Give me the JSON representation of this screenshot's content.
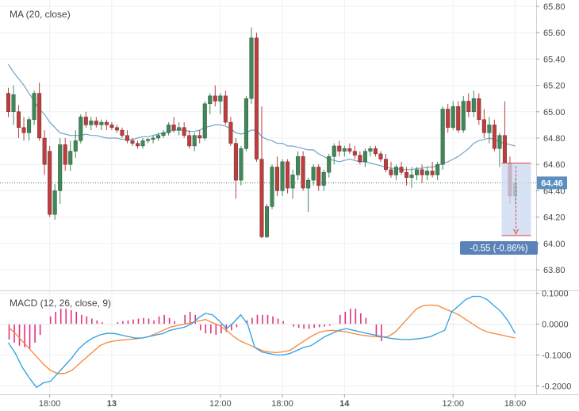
{
  "price_pane": {
    "indicator_label": "MA (20, close)",
    "last_price_label": "64.46",
    "measure_label": "-0.55 (-0.86%)"
  },
  "macd_pane": {
    "indicator_label": "MACD (12, 26, close, 9)"
  },
  "colors": {
    "up": "#3d8a57",
    "down": "#c43b3b",
    "ma": "#6fa5c9",
    "macd_line": "#2d9fe0",
    "signal_line": "#f5883a",
    "histogram": "#e0327e",
    "last_price_bg": "#5b8fbf",
    "measure_bg": "#5b82b8",
    "measure_fill": "#c9daf2",
    "measure_border": "#e04848"
  },
  "chart_data": [
    {
      "type": "candlestick",
      "ylim": [
        63.7,
        65.8
      ],
      "y_ticks": [
        "65.80",
        "65.60",
        "65.40",
        "65.20",
        "65.00",
        "64.80",
        "64.60",
        "64.40",
        "64.20",
        "64.00",
        "63.80"
      ],
      "x_ticks": [
        "18:00",
        "13",
        "12:00",
        "18:00",
        "14",
        "12:00",
        "18:00"
      ],
      "x_tick_bold": [
        false,
        true,
        false,
        false,
        true,
        false,
        false
      ],
      "x_tick_index": [
        8,
        20,
        41,
        53,
        65,
        86,
        98
      ],
      "last_price": 64.46,
      "measure": {
        "start_index": 96,
        "end_index": 98,
        "from": 64.61,
        "to": 64.06,
        "change": -0.55,
        "change_pct": -0.86
      },
      "candles": [
        [
          65.14,
          65.18,
          64.96,
          65.0
        ],
        [
          65.0,
          65.2,
          64.9,
          65.13
        ],
        [
          65.0,
          65.05,
          64.8,
          64.88
        ],
        [
          64.88,
          64.96,
          64.78,
          64.84
        ],
        [
          64.84,
          64.96,
          64.78,
          64.94
        ],
        [
          64.94,
          65.16,
          64.9,
          65.14
        ],
        [
          65.14,
          65.22,
          64.78,
          64.8
        ],
        [
          64.8,
          64.86,
          64.52,
          64.6
        ],
        [
          64.7,
          64.74,
          64.2,
          64.22
        ],
        [
          64.22,
          64.45,
          64.18,
          64.4
        ],
        [
          64.4,
          64.8,
          64.3,
          64.75
        ],
        [
          64.75,
          64.8,
          64.55,
          64.6
        ],
        [
          64.6,
          64.78,
          64.55,
          64.7
        ],
        [
          64.7,
          64.86,
          64.65,
          64.78
        ],
        [
          64.78,
          64.98,
          64.76,
          64.96
        ],
        [
          64.96,
          65.0,
          64.88,
          64.9
        ],
        [
          64.9,
          64.96,
          64.86,
          64.93
        ],
        [
          64.93,
          64.96,
          64.88,
          64.9
        ],
        [
          64.9,
          64.94,
          64.86,
          64.92
        ],
        [
          64.92,
          64.94,
          64.86,
          64.9
        ],
        [
          64.9,
          64.92,
          64.86,
          64.88
        ],
        [
          64.88,
          64.9,
          64.84,
          64.86
        ],
        [
          64.86,
          64.88,
          64.8,
          64.82
        ],
        [
          64.82,
          64.86,
          64.76,
          64.78
        ],
        [
          64.78,
          64.8,
          64.74,
          64.76
        ],
        [
          64.76,
          64.78,
          64.72,
          64.74
        ],
        [
          64.74,
          64.8,
          64.72,
          64.78
        ],
        [
          64.78,
          64.8,
          64.76,
          64.79
        ],
        [
          64.79,
          64.82,
          64.76,
          64.8
        ],
        [
          64.8,
          64.84,
          64.78,
          64.82
        ],
        [
          64.82,
          64.86,
          64.8,
          64.84
        ],
        [
          64.84,
          64.92,
          64.82,
          64.9
        ],
        [
          64.9,
          64.96,
          64.84,
          64.86
        ],
        [
          64.86,
          64.92,
          64.82,
          64.88
        ],
        [
          64.88,
          64.92,
          64.8,
          64.82
        ],
        [
          64.82,
          64.86,
          64.72,
          64.74
        ],
        [
          64.74,
          64.84,
          64.7,
          64.82
        ],
        [
          64.82,
          64.86,
          64.76,
          64.8
        ],
        [
          64.8,
          65.08,
          64.78,
          65.06
        ],
        [
          65.06,
          65.14,
          64.98,
          65.12
        ],
        [
          65.12,
          65.2,
          65.04,
          65.08
        ],
        [
          65.08,
          65.14,
          64.98,
          65.12
        ],
        [
          65.12,
          65.16,
          64.9,
          64.92
        ],
        [
          64.92,
          64.96,
          64.74,
          64.76
        ],
        [
          64.76,
          64.8,
          64.34,
          64.48
        ],
        [
          64.48,
          64.74,
          64.44,
          64.72
        ],
        [
          64.72,
          65.12,
          64.7,
          65.1
        ],
        [
          65.1,
          65.64,
          65.06,
          65.56
        ],
        [
          65.56,
          65.6,
          64.62,
          64.64
        ],
        [
          64.64,
          65.04,
          64.04,
          64.05
        ],
        [
          64.05,
          64.3,
          64.04,
          64.28
        ],
        [
          64.28,
          64.6,
          64.26,
          64.58
        ],
        [
          64.58,
          64.66,
          64.36,
          64.4
        ],
        [
          64.4,
          64.64,
          64.36,
          64.62
        ],
        [
          64.62,
          64.64,
          64.38,
          64.42
        ],
        [
          64.42,
          64.56,
          64.34,
          64.52
        ],
        [
          64.52,
          64.7,
          64.48,
          64.66
        ],
        [
          64.66,
          64.7,
          64.4,
          64.42
        ],
        [
          64.42,
          64.5,
          64.24,
          64.48
        ],
        [
          64.48,
          64.6,
          64.44,
          64.58
        ],
        [
          64.58,
          64.6,
          64.4,
          64.44
        ],
        [
          64.44,
          64.56,
          64.4,
          64.54
        ],
        [
          64.54,
          64.68,
          64.5,
          64.66
        ],
        [
          64.66,
          64.76,
          64.6,
          64.74
        ],
        [
          64.74,
          64.78,
          64.66,
          64.7
        ],
        [
          64.7,
          64.74,
          64.66,
          64.72
        ],
        [
          64.72,
          64.76,
          64.68,
          64.7
        ],
        [
          64.7,
          64.74,
          64.64,
          64.67
        ],
        [
          64.67,
          64.7,
          64.6,
          64.62
        ],
        [
          64.62,
          64.72,
          64.58,
          64.7
        ],
        [
          64.7,
          64.74,
          64.66,
          64.72
        ],
        [
          64.72,
          64.74,
          64.66,
          64.68
        ],
        [
          64.68,
          64.7,
          64.62,
          64.64
        ],
        [
          64.64,
          64.68,
          64.54,
          64.56
        ],
        [
          64.56,
          64.62,
          64.5,
          64.52
        ],
        [
          64.52,
          64.6,
          64.48,
          64.58
        ],
        [
          64.58,
          64.62,
          64.52,
          64.54
        ],
        [
          64.54,
          64.58,
          64.44,
          64.5
        ],
        [
          64.5,
          64.58,
          64.42,
          64.52
        ],
        [
          64.52,
          64.58,
          64.48,
          64.56
        ],
        [
          64.56,
          64.6,
          64.46,
          64.52
        ],
        [
          64.52,
          64.58,
          64.48,
          64.55
        ],
        [
          64.55,
          64.62,
          64.5,
          64.52
        ],
        [
          64.52,
          64.62,
          64.48,
          64.6
        ],
        [
          64.6,
          65.04,
          64.56,
          65.02
        ],
        [
          65.02,
          65.06,
          64.84,
          64.88
        ],
        [
          64.88,
          65.08,
          64.86,
          65.04
        ],
        [
          65.04,
          65.08,
          64.84,
          64.86
        ],
        [
          64.86,
          65.12,
          64.84,
          65.08
        ],
        [
          65.08,
          65.14,
          64.96,
          65.0
        ],
        [
          65.0,
          65.16,
          64.96,
          65.1
        ],
        [
          65.1,
          65.14,
          64.9,
          64.94
        ],
        [
          64.94,
          65.02,
          64.8,
          64.84
        ],
        [
          64.84,
          64.96,
          64.76,
          64.9
        ],
        [
          64.9,
          64.94,
          64.7,
          64.72
        ],
        [
          64.72,
          64.84,
          64.58,
          64.82
        ],
        [
          64.82,
          65.08,
          64.6,
          64.61
        ],
        [
          64.61,
          64.66,
          64.3,
          64.36
        ],
        [
          64.36,
          64.5,
          64.3,
          64.46
        ]
      ],
      "ma": [
        65.36,
        65.3,
        65.25,
        65.2,
        65.14,
        65.08,
        65.02,
        64.98,
        64.92,
        64.88,
        64.84,
        64.83,
        64.82,
        64.82,
        64.82,
        64.83,
        64.82,
        64.82,
        64.81,
        64.8,
        64.8,
        64.8,
        64.79,
        64.79,
        64.79,
        64.8,
        64.81,
        64.81,
        64.82,
        64.83,
        64.84,
        64.85,
        64.86,
        64.86,
        64.86,
        64.85,
        64.85,
        64.86,
        64.88,
        64.89,
        64.9,
        64.9,
        64.89,
        64.87,
        64.84,
        64.83,
        64.84,
        64.86,
        64.86,
        64.81,
        64.79,
        64.78,
        64.76,
        64.76,
        64.74,
        64.74,
        64.73,
        64.72,
        64.71,
        64.71,
        64.68,
        64.66,
        64.64,
        64.63,
        64.62,
        64.63,
        64.64,
        64.63,
        64.62,
        64.62,
        64.61,
        64.6,
        64.59,
        64.58,
        64.57,
        64.57,
        64.56,
        64.56,
        64.56,
        64.57,
        64.57,
        64.58,
        64.58,
        64.59,
        64.61,
        64.62,
        64.64,
        64.66,
        64.69,
        64.72,
        64.76,
        64.78,
        64.79,
        64.8,
        64.79,
        64.77,
        64.76,
        64.75,
        64.74
      ],
      "ma_ylabel": ""
    },
    {
      "type": "line+bar",
      "ylim": [
        -0.22,
        0.1
      ],
      "y_ticks": [
        "0.1000",
        "0.0000",
        "-0.1000",
        "-0.2000"
      ],
      "series": [
        {
          "values": [
            -0.06,
            -0.095,
            -0.14,
            -0.175,
            -0.205,
            -0.19,
            -0.185,
            -0.16,
            -0.135,
            -0.11,
            -0.08,
            -0.06,
            -0.045,
            -0.035,
            -0.03,
            -0.03,
            -0.035,
            -0.04,
            -0.045,
            -0.045,
            -0.04,
            -0.035,
            -0.03,
            -0.02,
            -0.015,
            -0.01,
            0.0,
            0.02,
            0.035,
            0.03,
            0.01,
            -0.015,
            0.005,
            0.03,
            0.0,
            -0.075,
            -0.09,
            -0.095,
            -0.1,
            -0.1,
            -0.095,
            -0.085,
            -0.075,
            -0.07,
            -0.055,
            -0.04,
            -0.03,
            -0.02,
            -0.015,
            -0.02,
            -0.025,
            -0.03,
            -0.035,
            -0.04,
            -0.045,
            -0.048,
            -0.05,
            -0.05,
            -0.048,
            -0.045,
            -0.04,
            -0.03,
            -0.02,
            0.04,
            0.06,
            0.08,
            0.09,
            0.09,
            0.08,
            0.06,
            0.04,
            0.01,
            -0.03
          ]
        },
        {
          "values": [
            -0.01,
            -0.03,
            -0.055,
            -0.08,
            -0.105,
            -0.13,
            -0.15,
            -0.16,
            -0.16,
            -0.15,
            -0.13,
            -0.11,
            -0.09,
            -0.07,
            -0.06,
            -0.055,
            -0.052,
            -0.05,
            -0.048,
            -0.045,
            -0.04,
            -0.03,
            -0.02,
            -0.01,
            -0.005,
            0.0,
            0.005,
            0.01,
            0.015,
            0.005,
            -0.005,
            -0.02,
            -0.04,
            -0.055,
            -0.065,
            -0.075,
            -0.085,
            -0.09,
            -0.092,
            -0.09,
            -0.085,
            -0.07,
            -0.055,
            -0.04,
            -0.028,
            -0.022,
            -0.02,
            -0.022,
            -0.025,
            -0.03,
            -0.035,
            -0.038,
            -0.04,
            -0.042,
            -0.04,
            -0.025,
            0.0,
            0.025,
            0.05,
            0.06,
            0.062,
            0.06,
            0.05,
            0.04,
            0.03,
            0.015,
            0.0,
            -0.015,
            -0.025,
            -0.03,
            -0.035,
            -0.04,
            -0.045
          ]
        }
      ],
      "histogram": [
        -0.05,
        -0.06,
        -0.07,
        -0.075,
        -0.08,
        -0.06,
        -0.035,
        0.0,
        0.025,
        0.04,
        0.05,
        0.05,
        0.045,
        0.04,
        0.03,
        0.025,
        0.018,
        0.012,
        0.006,
        0.0,
        0.0,
        0.006,
        0.01,
        0.012,
        0.015,
        0.018,
        0.02,
        0.018,
        0.012,
        0.025,
        0.03,
        0.02,
        0.01,
        0.0,
        0.03,
        0.04,
        0.03,
        -0.02,
        -0.03,
        -0.03,
        -0.035,
        -0.03,
        -0.025,
        -0.02,
        -0.01,
        0.0,
        0.012,
        0.02,
        0.03,
        0.03,
        0.03,
        0.025,
        0.018,
        0.01,
        0.0,
        -0.008,
        -0.012,
        -0.015,
        -0.015,
        -0.012,
        -0.01,
        -0.008,
        -0.005,
        0.0,
        0.03,
        0.04,
        0.05,
        0.05,
        0.035,
        0.02,
        0.0,
        -0.04,
        -0.055
      ]
    }
  ]
}
